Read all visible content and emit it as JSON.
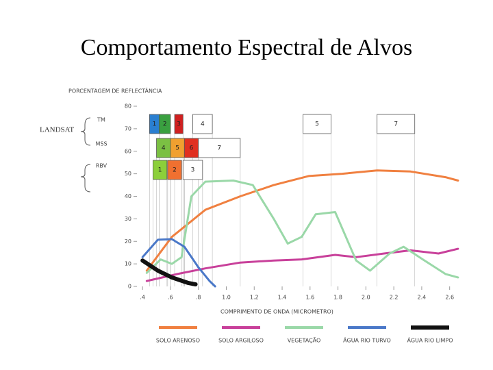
{
  "chart_data": {
    "type": "line",
    "title": "Comportamento Espectral de Alvos",
    "y_label": "PORCENTAGEM DE REFLECTÂNCIA",
    "x_label": "COMPRIMENTO DE ONDA (MICROMETRO)",
    "annotations": [
      "LANDSAT"
    ],
    "xlim": [
      0.36,
      2.68
    ],
    "ylim": [
      0,
      80
    ],
    "xticks": [
      {
        "value": 0.4,
        "label": ".4"
      },
      {
        "value": 0.6,
        "label": ".6"
      },
      {
        "value": 0.8,
        "label": ".8"
      },
      {
        "value": 1.0,
        "label": "1.0"
      },
      {
        "value": 1.2,
        "label": "1.2"
      },
      {
        "value": 1.4,
        "label": "1.4"
      },
      {
        "value": 1.6,
        "label": "1.6"
      },
      {
        "value": 1.8,
        "label": "1.8"
      },
      {
        "value": 2.0,
        "label": "2.0"
      },
      {
        "value": 2.2,
        "label": "2.2"
      },
      {
        "value": 2.4,
        "label": "2.4"
      },
      {
        "value": 2.6,
        "label": "2.6"
      }
    ],
    "yticks": [
      0,
      10,
      20,
      30,
      40,
      50,
      60,
      70,
      80
    ],
    "band_rows": [
      {
        "name": "TM",
        "bands": [
          {
            "label": "1",
            "range": [
              0.45,
              0.52
            ],
            "color": "#2a7fd0"
          },
          {
            "label": "2",
            "range": [
              0.52,
              0.6
            ],
            "color": "#3aa040"
          },
          {
            "label": "3",
            "range": [
              0.63,
              0.69
            ],
            "color": "#d02020"
          },
          {
            "label": "4",
            "range": [
              0.76,
              0.9
            ],
            "color": "#ffffff"
          },
          {
            "label": "5",
            "range": [
              1.55,
              1.75
            ],
            "color": "#ffffff"
          },
          {
            "label": "7",
            "range": [
              2.08,
              2.35
            ],
            "color": "#ffffff"
          }
        ]
      },
      {
        "name": "MSS",
        "bands": [
          {
            "label": "4",
            "range": [
              0.5,
              0.6
            ],
            "color": "#7bc043"
          },
          {
            "label": "5",
            "range": [
              0.6,
              0.7
            ],
            "color": "#f0a030"
          },
          {
            "label": "6",
            "range": [
              0.7,
              0.8
            ],
            "color": "#e03020"
          },
          {
            "label": "7",
            "range": [
              0.8,
              1.1
            ],
            "color": "#ffffff"
          }
        ]
      },
      {
        "name": "RBV",
        "bands": [
          {
            "label": "1",
            "range": [
              0.475,
              0.575
            ],
            "color": "#8ccf3a"
          },
          {
            "label": "2",
            "range": [
              0.58,
              0.68
            ],
            "color": "#f07030"
          },
          {
            "label": "3",
            "range": [
              0.69,
              0.83
            ],
            "color": "#ffffff"
          }
        ]
      }
    ],
    "series": [
      {
        "name": "SOLO ARENOSO",
        "color": "#f08040",
        "x": [
          0.43,
          0.61,
          0.85,
          1.1,
          1.34,
          1.59,
          1.83,
          2.08,
          2.32,
          2.57,
          2.66
        ],
        "values": [
          7,
          22,
          34,
          40,
          45,
          49,
          50,
          51.5,
          51,
          48.5,
          47
        ]
      },
      {
        "name": "SOLO ARGILOSO",
        "color": "#c8409a",
        "x": [
          0.43,
          0.65,
          0.85,
          1.1,
          1.34,
          1.54,
          1.78,
          1.93,
          2.13,
          2.32,
          2.52,
          2.66
        ],
        "values": [
          2.4,
          5.5,
          8,
          10.6,
          11.5,
          12,
          14,
          13,
          14.6,
          16,
          14.6,
          16.7
        ]
      },
      {
        "name": "VEGETAÇÃO",
        "color": "#9ad8a8",
        "x": [
          0.43,
          0.53,
          0.61,
          0.68,
          0.75,
          0.85,
          1.05,
          1.19,
          1.34,
          1.44,
          1.54,
          1.64,
          1.78,
          1.93,
          2.03,
          2.17,
          2.27,
          2.42,
          2.57,
          2.66
        ],
        "values": [
          6,
          12,
          10,
          13,
          40,
          46.5,
          47,
          45,
          30,
          19,
          22,
          32,
          33,
          11.5,
          7,
          14.6,
          17.6,
          11.5,
          5.5,
          4
        ]
      },
      {
        "name": "ÁGUA RIO TURVO",
        "color": "#4a78c8",
        "x": [
          0.4,
          0.51,
          0.61,
          0.7,
          0.8,
          0.88,
          0.92
        ],
        "values": [
          13,
          20.7,
          21,
          17.6,
          8.5,
          2.4,
          0
        ]
      },
      {
        "name": "ÁGUA RIO LIMPO",
        "color": "#111111",
        "x": [
          0.4,
          0.51,
          0.61,
          0.73,
          0.78
        ],
        "values": [
          11.5,
          7,
          4,
          1.5,
          0.9
        ]
      }
    ]
  }
}
